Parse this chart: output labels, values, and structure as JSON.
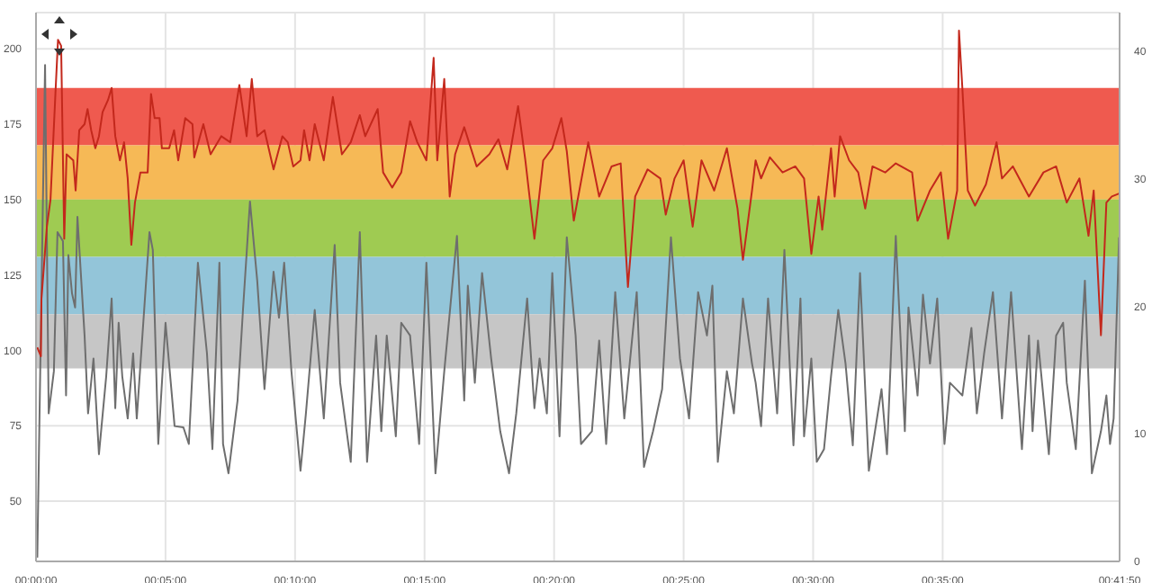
{
  "chart_data": {
    "type": "line",
    "xlim": [
      0,
      41.83
    ],
    "xticks": [
      {
        "value": 0,
        "label": "00:00:00"
      },
      {
        "value": 5,
        "label": "00:05:00"
      },
      {
        "value": 10,
        "label": "00:10:00"
      },
      {
        "value": 15,
        "label": "00:15:00"
      },
      {
        "value": 20,
        "label": "00:20:00"
      },
      {
        "value": 25,
        "label": "00:25:00"
      },
      {
        "value": 30,
        "label": "00:30:00"
      },
      {
        "value": 35,
        "label": "00:35:00"
      },
      {
        "value": 41.83,
        "label": "00:41:50"
      }
    ],
    "ylim": [
      30,
      212
    ],
    "yticks": [
      50,
      75,
      100,
      125,
      150,
      175,
      200
    ],
    "y2lim": [
      0,
      43
    ],
    "y2ticks": [
      0,
      10,
      20,
      30,
      40
    ],
    "grid": true,
    "legend": false,
    "marker": "none",
    "line_style": "solid",
    "bands": [
      {
        "axis": "y",
        "from": 168,
        "to": 187,
        "color": "#ef5a4f"
      },
      {
        "axis": "y",
        "from": 150,
        "to": 168,
        "color": "#f6b956"
      },
      {
        "axis": "y",
        "from": 131,
        "to": 150,
        "color": "#9fcb52"
      },
      {
        "axis": "y",
        "from": 112,
        "to": 131,
        "color": "#93c5d9"
      },
      {
        "axis": "y",
        "from": 94,
        "to": 112,
        "color": "#c6c6c6"
      }
    ],
    "series": [
      {
        "color": "#6e6e6e",
        "axis": "y2",
        "x": [
          0.05,
          0.35,
          0.49,
          0.69,
          0.83,
          1.04,
          1.16,
          1.25,
          1.39,
          1.51,
          1.6,
          1.875,
          2.01,
          2.22,
          2.43,
          2.71,
          2.92,
          3.06,
          3.19,
          3.33,
          3.54,
          3.75,
          3.89,
          4.38,
          4.51,
          4.72,
          5,
          5.35,
          5.69,
          5.9,
          6.25,
          6.6,
          6.81,
          7.08,
          7.22,
          7.43,
          7.78,
          7.99,
          8.26,
          8.54,
          8.82,
          9.17,
          9.38,
          9.58,
          9.86,
          10.21,
          10.42,
          10.76,
          11.11,
          11.53,
          11.74,
          12.15,
          12.5,
          12.78,
          13.13,
          13.33,
          13.54,
          13.89,
          14.1,
          14.44,
          14.79,
          15.07,
          15.42,
          15.76,
          16.25,
          16.53,
          16.67,
          16.94,
          17.22,
          17.57,
          17.92,
          18.26,
          18.54,
          18.96,
          19.24,
          19.44,
          19.72,
          19.93,
          20.21,
          20.49,
          20.83,
          21.04,
          21.46,
          21.74,
          22.01,
          22.36,
          22.71,
          23.19,
          23.47,
          23.82,
          24.17,
          24.51,
          24.86,
          25.21,
          25.56,
          25.9,
          26.11,
          26.32,
          26.67,
          26.94,
          27.29,
          27.64,
          27.78,
          27.99,
          28.26,
          28.61,
          28.89,
          29.24,
          29.51,
          29.65,
          29.93,
          30.14,
          30.42,
          30.69,
          30.97,
          31.25,
          31.53,
          31.81,
          32.15,
          32.64,
          32.85,
          33.19,
          33.54,
          33.68,
          34.03,
          34.24,
          34.51,
          34.79,
          35.07,
          35.28,
          35.76,
          36.11,
          36.32,
          36.6,
          36.94,
          37.29,
          37.64,
          38.06,
          38.33,
          38.47,
          38.68,
          39.1,
          39.38,
          39.65,
          39.79,
          40.14,
          40.49,
          40.76,
          41.11,
          41.32,
          41.46,
          41.6,
          41.81
        ],
        "values": [
          0.3,
          38.9,
          11.6,
          14.9,
          25.8,
          25.1,
          13,
          24,
          21,
          19.9,
          27,
          17.7,
          11.6,
          15.9,
          8.4,
          14.5,
          20.6,
          12,
          18.7,
          14.5,
          11.2,
          16.3,
          11.2,
          25.8,
          24.4,
          9.2,
          18.7,
          10.6,
          10.5,
          9.2,
          23.4,
          16.3,
          8.8,
          23.4,
          9.2,
          6.9,
          12.6,
          19.7,
          28.2,
          22,
          13.5,
          22.7,
          19.1,
          23.4,
          14.9,
          7.1,
          11.6,
          19.7,
          11.2,
          24.8,
          14,
          7.8,
          25.8,
          7.8,
          17.7,
          10.2,
          17.7,
          9.8,
          18.7,
          17.7,
          9.2,
          23.4,
          6.9,
          14.9,
          25.5,
          12.6,
          21.6,
          14,
          22.6,
          15.9,
          10.2,
          6.9,
          11.6,
          20.6,
          12,
          15.9,
          11.6,
          22.6,
          9.8,
          25.4,
          17.7,
          9.2,
          10.2,
          17.3,
          9.2,
          21.1,
          11.2,
          21.1,
          7.4,
          10.2,
          13.5,
          25.4,
          15.9,
          11.2,
          21.1,
          17.7,
          21.6,
          7.8,
          14.9,
          11.6,
          20.6,
          15.5,
          14,
          10.6,
          20.6,
          11.6,
          24.4,
          9.1,
          20.6,
          9.8,
          15.9,
          7.8,
          8.8,
          14.5,
          19.7,
          15.5,
          9.1,
          22.6,
          7.1,
          13.5,
          8.4,
          25.5,
          10.2,
          19.9,
          13,
          20.9,
          15.5,
          20.6,
          9.2,
          14,
          13,
          18.3,
          11.6,
          16.3,
          21.1,
          11.2,
          21.1,
          8.8,
          17.7,
          10.2,
          17.3,
          8.4,
          17.7,
          18.7,
          14,
          8.8,
          22,
          6.9,
          10.2,
          13,
          9.2,
          11.2,
          25.4
        ]
      },
      {
        "color": "#c3281c",
        "x": [
          0.05,
          0.19,
          0.21,
          0.42,
          0.56,
          0.76,
          0.85,
          0.97,
          1.09,
          1.18,
          1.44,
          1.53,
          1.67,
          1.875,
          1.99,
          2.13,
          2.29,
          2.43,
          2.57,
          2.78,
          2.92,
          3.06,
          3.24,
          3.4,
          3.54,
          3.68,
          3.82,
          4.03,
          4.31,
          4.44,
          4.58,
          4.77,
          4.86,
          5.14,
          5.33,
          5.49,
          5.76,
          6.04,
          6.11,
          6.46,
          6.74,
          7.15,
          7.5,
          7.85,
          8.13,
          8.33,
          8.54,
          8.82,
          9.17,
          9.51,
          9.72,
          9.93,
          10.21,
          10.35,
          10.56,
          10.76,
          11.11,
          11.46,
          11.81,
          12.15,
          12.5,
          12.71,
          13.19,
          13.4,
          13.75,
          14.1,
          14.44,
          14.72,
          15.07,
          15.35,
          15.49,
          15.76,
          15.97,
          16.18,
          16.53,
          17.01,
          17.5,
          17.85,
          18.19,
          18.61,
          18.89,
          19.24,
          19.58,
          19.93,
          20.28,
          20.49,
          20.76,
          21.32,
          21.74,
          22.22,
          22.57,
          22.85,
          23.13,
          23.61,
          24.1,
          24.31,
          24.65,
          25,
          25.35,
          25.69,
          26.18,
          26.67,
          27.08,
          27.29,
          27.64,
          27.78,
          27.99,
          28.33,
          28.82,
          29.31,
          29.65,
          29.93,
          30.21,
          30.35,
          30.69,
          30.83,
          31.04,
          31.39,
          31.74,
          32.01,
          32.29,
          32.78,
          33.19,
          33.82,
          34.03,
          34.51,
          34.93,
          35.21,
          35.56,
          35.63,
          35.76,
          35.97,
          36.25,
          36.67,
          37.08,
          37.29,
          37.71,
          38.33,
          38.89,
          39.38,
          39.79,
          40.28,
          40.63,
          40.83,
          41.11,
          41.32,
          41.53,
          41.81
        ],
        "values": [
          101,
          98,
          117,
          141,
          150,
          187,
          203,
          201,
          137,
          165,
          163,
          153,
          173,
          175,
          180,
          173,
          167,
          171,
          179,
          183,
          187,
          171,
          163,
          169,
          157,
          135,
          149,
          159,
          159,
          185,
          177,
          177,
          167,
          167,
          173,
          163,
          177,
          175,
          164,
          175,
          165,
          171,
          169,
          188,
          171,
          190,
          171,
          173,
          160,
          171,
          169,
          161,
          163,
          173,
          163,
          175,
          163,
          184,
          165,
          169,
          178,
          171,
          180,
          159,
          154,
          159,
          176,
          169,
          163,
          197,
          163,
          190,
          151,
          165,
          174,
          161,
          165,
          170,
          160,
          181,
          163,
          137,
          163,
          167,
          177,
          166,
          143,
          169,
          151,
          161,
          162,
          121,
          151,
          160,
          157,
          145,
          157,
          163,
          141,
          163,
          153,
          167,
          147,
          130,
          153,
          163,
          157,
          164,
          159,
          161,
          157,
          132,
          151,
          140,
          167,
          151,
          171,
          163,
          159,
          147,
          161,
          159,
          162,
          159,
          143,
          153,
          159,
          137,
          153,
          206,
          187,
          153,
          148,
          155,
          169,
          157,
          161,
          151,
          159,
          161,
          149,
          157,
          138,
          153,
          105,
          149,
          151,
          152
        ]
      }
    ]
  }
}
